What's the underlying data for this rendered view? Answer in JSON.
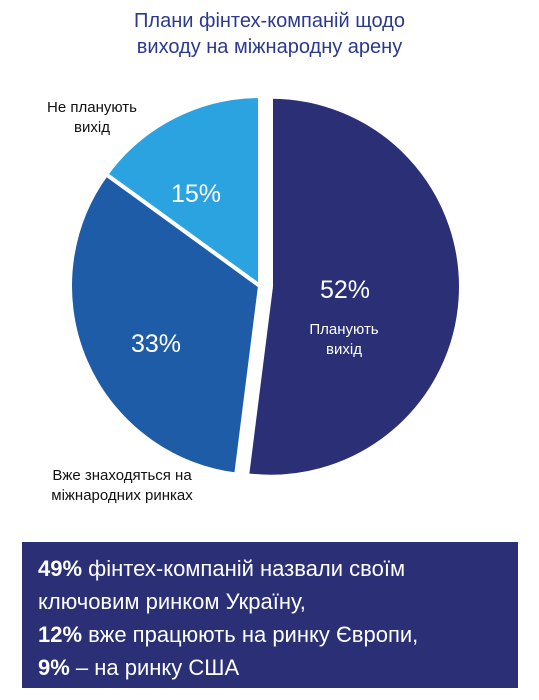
{
  "title_lines": [
    "Плани фінтех-компаній щодо",
    "виходу на міжнародну арену"
  ],
  "chart_data": {
    "type": "pie",
    "title": "Плани фінтех-компаній щодо виходу на міжнародну арену",
    "slices": [
      {
        "label_lines": [
          "Планують",
          "вихід"
        ],
        "value": 52,
        "value_label": "52%",
        "color": "#2a2f76",
        "exploded": true
      },
      {
        "label_lines": [
          "Вже знаходяться на",
          "міжнародних ринках"
        ],
        "value": 33,
        "value_label": "33%",
        "color": "#1f5ca8",
        "exploded": false
      },
      {
        "label_lines": [
          "Не планують",
          "вихід"
        ],
        "value": 15,
        "value_label": "15%",
        "color": "#2aa3e0",
        "exploded": false
      }
    ]
  },
  "summary": {
    "line1": {
      "highlight": "49%",
      "text": " фінтех-компаній назвали своїм"
    },
    "line2": {
      "text": "ключовим ринком Україну,"
    },
    "line3": {
      "highlight": "12%",
      "text": " вже працюють на ринку Європи,"
    },
    "line4": {
      "highlight": "9%",
      "text": " – на ринку США"
    }
  }
}
